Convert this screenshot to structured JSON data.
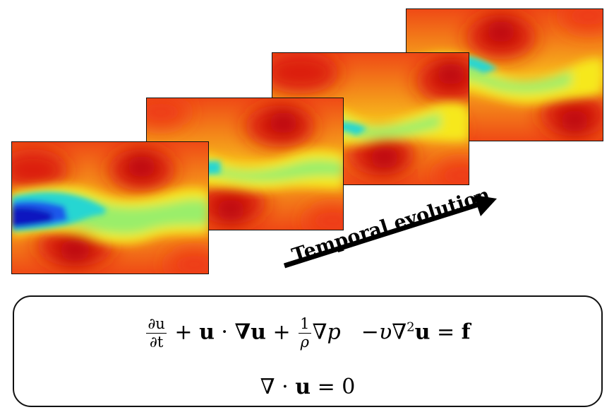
{
  "arrow_label": "Temporal evolution",
  "equations": {
    "momentum": {
      "dt_num": "∂u",
      "dt_den": "∂t",
      "plus1": "+",
      "advect_u": "u",
      "dot": "·",
      "nabla_u": "∇u",
      "plus2": "+",
      "rho_num": "1",
      "rho_den": "ρ",
      "grad": "∇",
      "p": "p",
      "minus": "−",
      "nu": "υ",
      "lap": "∇",
      "sq": "2",
      "lap_u": "u",
      "eq": "=",
      "f": "f"
    },
    "continuity": {
      "nabla": "∇",
      "dot": "·",
      "u": "u",
      "eq": "=",
      "zero": "0"
    }
  },
  "colors": {
    "colormap": "jet",
    "background_field": "#f2a21a",
    "hot": "#c8000f",
    "warm": "#ee3a18",
    "neutral": "#f6e81a",
    "cool": "#9aee6a",
    "cold": "#28d6d2",
    "coldest": "#0a12c0"
  },
  "icons": [
    "arrow-right-icon"
  ]
}
